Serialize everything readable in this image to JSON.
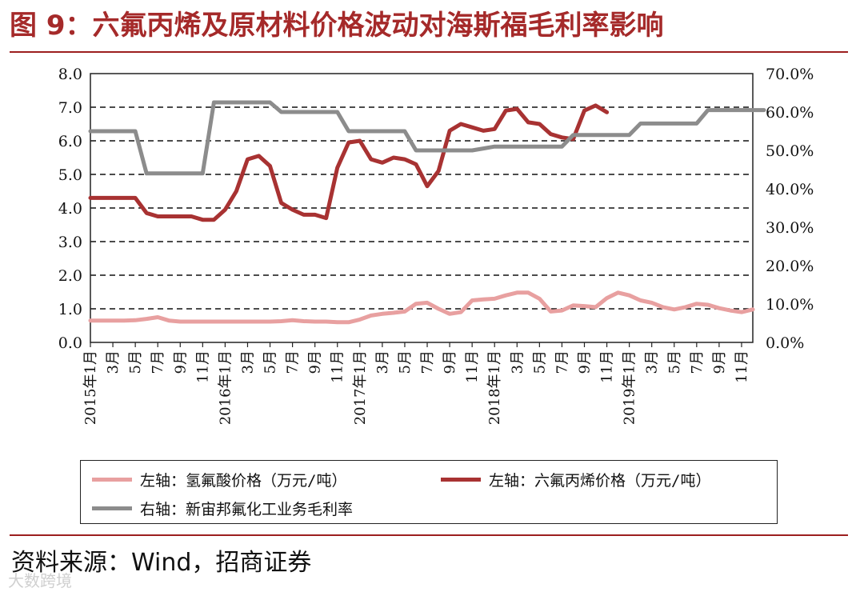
{
  "title": "图 9：六氟丙烯及原材料价格波动对海斯福毛利率影响",
  "source": "资料来源：Wind，招商证券",
  "watermark": "大数跨境",
  "colors": {
    "title": "#a52a2a",
    "hf": "#e8a0a0",
    "hfp": "#a83232",
    "margin": "#8c8c8c"
  },
  "chart_data": {
    "type": "line",
    "x": [
      "2015年1月",
      "3月",
      "5月",
      "7月",
      "9月",
      "11月",
      "2016年1月",
      "3月",
      "5月",
      "7月",
      "9月",
      "11月",
      "2017年1月",
      "3月",
      "5月",
      "7月",
      "9月",
      "11月",
      "2018年1月",
      "3月",
      "5月",
      "7月",
      "9月",
      "11月",
      "2019年1月",
      "3月",
      "5月",
      "7月",
      "9月",
      "11月"
    ],
    "left_axis": {
      "ticks": [
        "0.0",
        "1.0",
        "2.0",
        "3.0",
        "4.0",
        "5.0",
        "6.0",
        "7.0",
        "8.0"
      ],
      "ylim": [
        0,
        8
      ]
    },
    "right_axis": {
      "ticks": [
        "0.0%",
        "10.0%",
        "20.0%",
        "30.0%",
        "40.0%",
        "50.0%",
        "60.0%",
        "70.0%"
      ],
      "ylim": [
        0,
        70
      ]
    },
    "grid": "horizontal-dashed",
    "legend_position": "bottom",
    "series": [
      {
        "name": "左轴：氢氟酸价格（万元/吨）",
        "axis": "left",
        "color": "#e8a0a0",
        "points": [
          [
            0,
            0.65
          ],
          [
            1,
            0.65
          ],
          [
            2,
            0.65
          ],
          [
            3,
            0.65
          ],
          [
            4,
            0.66
          ],
          [
            5,
            0.7
          ],
          [
            6,
            0.75
          ],
          [
            7,
            0.65
          ],
          [
            8,
            0.62
          ],
          [
            9,
            0.62
          ],
          [
            10,
            0.62
          ],
          [
            11,
            0.62
          ],
          [
            12,
            0.62
          ],
          [
            13,
            0.62
          ],
          [
            14,
            0.62
          ],
          [
            15,
            0.62
          ],
          [
            16,
            0.62
          ],
          [
            17,
            0.63
          ],
          [
            18,
            0.66
          ],
          [
            19,
            0.63
          ],
          [
            20,
            0.62
          ],
          [
            21,
            0.62
          ],
          [
            22,
            0.6
          ],
          [
            23,
            0.6
          ],
          [
            24,
            0.68
          ],
          [
            25,
            0.8
          ],
          [
            26,
            0.85
          ],
          [
            27,
            0.88
          ],
          [
            28,
            0.92
          ],
          [
            29,
            1.15
          ],
          [
            30,
            1.18
          ],
          [
            31,
            1.0
          ],
          [
            32,
            0.85
          ],
          [
            33,
            0.9
          ],
          [
            34,
            1.25
          ],
          [
            35,
            1.28
          ],
          [
            36,
            1.3
          ],
          [
            37,
            1.4
          ],
          [
            38,
            1.48
          ],
          [
            39,
            1.48
          ],
          [
            40,
            1.3
          ],
          [
            41,
            0.92
          ],
          [
            42,
            0.95
          ],
          [
            43,
            1.1
          ],
          [
            44,
            1.08
          ],
          [
            45,
            1.05
          ],
          [
            46,
            1.32
          ],
          [
            47,
            1.48
          ],
          [
            48,
            1.4
          ],
          [
            49,
            1.25
          ],
          [
            50,
            1.18
          ],
          [
            51,
            1.05
          ],
          [
            52,
            0.98
          ],
          [
            53,
            1.05
          ],
          [
            54,
            1.15
          ],
          [
            55,
            1.12
          ],
          [
            56,
            1.02
          ],
          [
            57,
            0.95
          ],
          [
            58,
            0.9
          ],
          [
            59,
            0.98
          ]
        ]
      },
      {
        "name": "左轴：六氟丙烯价格（万元/吨）",
        "axis": "left",
        "color": "#a83232",
        "points": [
          [
            0,
            4.3
          ],
          [
            1,
            4.3
          ],
          [
            2,
            4.3
          ],
          [
            3,
            4.3
          ],
          [
            4,
            4.3
          ],
          [
            5,
            3.85
          ],
          [
            6,
            3.75
          ],
          [
            7,
            3.75
          ],
          [
            8,
            3.75
          ],
          [
            9,
            3.75
          ],
          [
            10,
            3.65
          ],
          [
            11,
            3.65
          ],
          [
            12,
            3.95
          ],
          [
            13,
            4.5
          ],
          [
            14,
            5.45
          ],
          [
            15,
            5.55
          ],
          [
            16,
            5.25
          ],
          [
            17,
            4.15
          ],
          [
            18,
            3.95
          ],
          [
            19,
            3.8
          ],
          [
            20,
            3.8
          ],
          [
            21,
            3.7
          ],
          [
            22,
            5.2
          ],
          [
            23,
            5.95
          ],
          [
            24,
            6.0
          ],
          [
            25,
            5.45
          ],
          [
            26,
            5.35
          ],
          [
            27,
            5.5
          ],
          [
            28,
            5.45
          ],
          [
            29,
            5.3
          ],
          [
            30,
            4.65
          ],
          [
            31,
            5.1
          ],
          [
            32,
            6.3
          ],
          [
            33,
            6.5
          ],
          [
            34,
            6.4
          ],
          [
            35,
            6.3
          ],
          [
            36,
            6.35
          ],
          [
            37,
            6.9
          ],
          [
            38,
            6.95
          ],
          [
            39,
            6.55
          ],
          [
            40,
            6.5
          ],
          [
            41,
            6.2
          ],
          [
            42,
            6.1
          ],
          [
            43,
            6.05
          ],
          [
            44,
            6.9
          ],
          [
            45,
            7.05
          ],
          [
            46,
            6.85
          ]
        ]
      },
      {
        "name": "右轴：新宙邦氟化工业务毛利率",
        "axis": "right",
        "color": "#8c8c8c",
        "points": [
          [
            0,
            55
          ],
          [
            4,
            55
          ],
          [
            5,
            44
          ],
          [
            10,
            44
          ],
          [
            11,
            62.5
          ],
          [
            16,
            62.5
          ],
          [
            17,
            60
          ],
          [
            22,
            60
          ],
          [
            23,
            55
          ],
          [
            28,
            55
          ],
          [
            29,
            50
          ],
          [
            34,
            50
          ],
          [
            35,
            50.5
          ],
          [
            36,
            51
          ],
          [
            42,
            51
          ],
          [
            43,
            54
          ],
          [
            48,
            54
          ],
          [
            49,
            57
          ],
          [
            54,
            57
          ],
          [
            55,
            60.5
          ],
          [
            60,
            60.5
          ]
        ]
      }
    ]
  }
}
